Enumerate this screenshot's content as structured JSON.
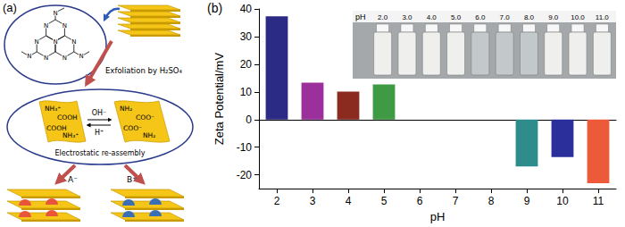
{
  "panel_labels": [
    "(a)",
    "(b)"
  ],
  "diagram": {
    "atom": "N",
    "step_1": "Exfoliation by H₂SO₄",
    "protonated": [
      "NH₃⁺",
      "COOH",
      "COOH",
      "NH₃⁺"
    ],
    "deprotonated": [
      "NH₂",
      "COO⁻",
      "COO⁻",
      "NH₂"
    ],
    "forward": "OH⁻",
    "backward": "H⁺",
    "step_2": "Electrostatic re-assembly",
    "anion": "A⁻",
    "cation": "B⁺"
  },
  "inset": {
    "label": "pH",
    "vials": [
      {
        "label": "2.0",
        "color": "#efefed"
      },
      {
        "label": "3.0",
        "color": "#efefed"
      },
      {
        "label": "4.0",
        "color": "#efefed"
      },
      {
        "label": "5.0",
        "color": "#efefed"
      },
      {
        "label": "6.0",
        "color": "#c3c8cb"
      },
      {
        "label": "7.0",
        "color": "#c3c8cb"
      },
      {
        "label": "8.0",
        "color": "#c3c8cb"
      },
      {
        "label": "9.0",
        "color": "#efefed"
      },
      {
        "label": "10.0",
        "color": "#efefed"
      },
      {
        "label": "11.0",
        "color": "#efefed"
      }
    ]
  },
  "chart_data": {
    "type": "bar",
    "xlabel": "pH",
    "ylabel": "Zeta Potential/mV",
    "categories": [
      "2",
      "3",
      "4",
      "5",
      "6",
      "7",
      "8",
      "9",
      "10",
      "11"
    ],
    "values": [
      37.3,
      13.3,
      10.1,
      12.7,
      null,
      null,
      null,
      -17.0,
      -13.6,
      -23.0
    ],
    "colors": [
      "#2b2a84",
      "#9b2f9b",
      "#8b2b1f",
      "#3f9a44",
      null,
      null,
      null,
      "#2f8c8c",
      "#2b2f9b",
      "#ec5a3a"
    ],
    "ylim": [
      -25,
      40
    ],
    "yticks": [
      -20,
      -10,
      0,
      10,
      20,
      30,
      40
    ],
    "grid": false
  }
}
